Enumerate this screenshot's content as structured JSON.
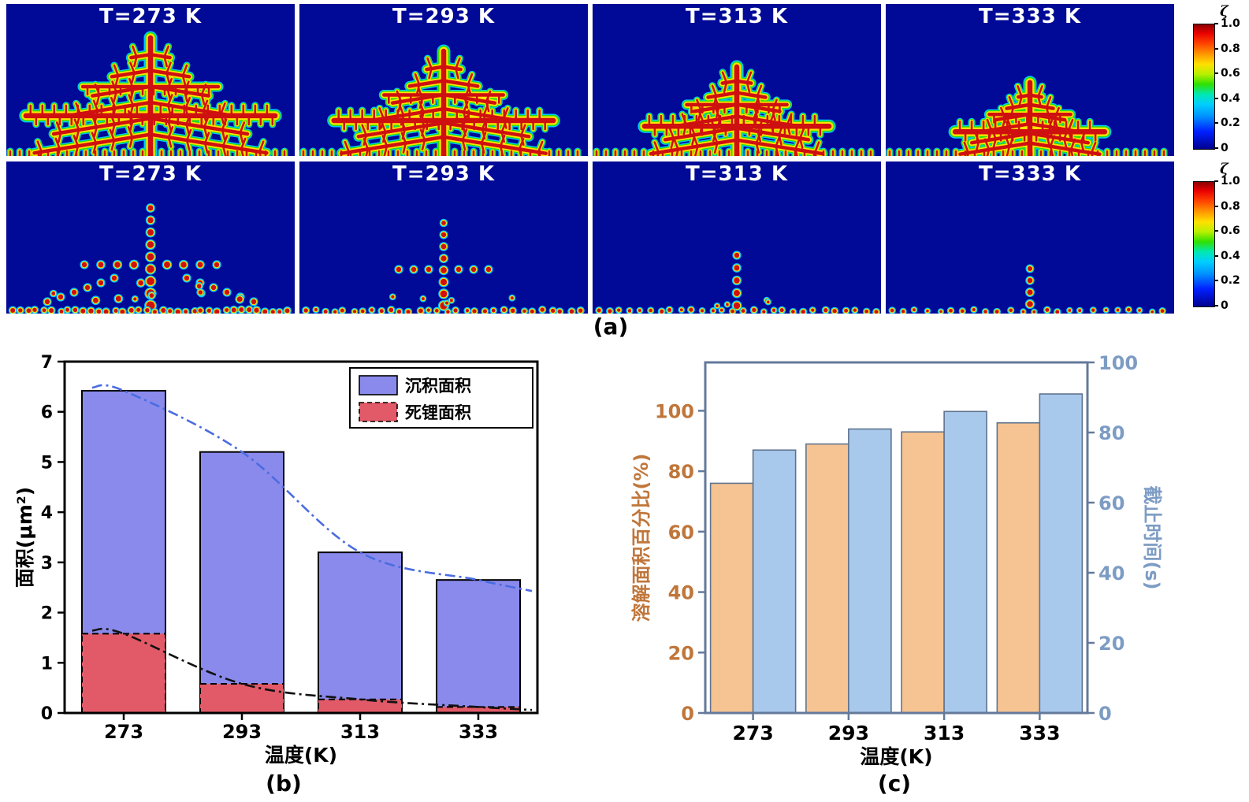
{
  "figure": {
    "panel_labels": {
      "a": "(a)",
      "b": "(b)",
      "c": "(c)"
    },
    "colorbar": {
      "label": "ζ",
      "ticks": [
        "1.0",
        "0.8",
        "0.6",
        "0.4",
        "0.2",
        "0"
      ]
    },
    "row1_titles": [
      "T=273 K",
      "T=293 K",
      "T=313 K",
      "T=333 K"
    ],
    "row2_titles": [
      "T=273 K",
      "T=293 K",
      "T=313 K",
      "T=333 K"
    ]
  },
  "chart_data": [
    {
      "id": "b",
      "type": "bar",
      "categories": [
        "273",
        "293",
        "313",
        "333"
      ],
      "series": [
        {
          "name": "沉积面积",
          "values": [
            6.42,
            5.2,
            3.2,
            2.65
          ],
          "color": "#8a8aec",
          "border": "solid",
          "trend_color": "#4a6ce0"
        },
        {
          "name": "死锂面积",
          "values": [
            1.58,
            0.58,
            0.27,
            0.12
          ],
          "color": "#e25a68",
          "border": "dashed",
          "trend_color": "#111111"
        }
      ],
      "xlabel": "温度(K)",
      "ylabel": "面积(μm²)",
      "ylim": [
        0,
        7
      ],
      "yticks": [
        0,
        1,
        2,
        3,
        4,
        5,
        6,
        7
      ],
      "legend_position": "top-right",
      "grid": false
    },
    {
      "id": "c",
      "type": "grouped-bar",
      "categories": [
        "273",
        "293",
        "313",
        "333"
      ],
      "series": [
        {
          "name": "溶解面积百分比(%)",
          "axis": "left",
          "values": [
            76,
            89,
            93,
            96
          ],
          "color": "#f6c492"
        },
        {
          "name": "截止时间(s)",
          "axis": "right",
          "values": [
            75,
            81,
            86,
            91
          ],
          "color": "#a9c9ec"
        }
      ],
      "xlabel": "温度(K)",
      "ylabel_left": "溶解面积百分比(%)",
      "ylabel_right": "截止时间(s)",
      "ylim_left": [
        0,
        116
      ],
      "ylim_right": [
        0,
        100
      ],
      "yticks_left": [
        0,
        20,
        40,
        60,
        80,
        100
      ],
      "yticks_right": [
        0,
        20,
        40,
        60,
        80,
        100
      ],
      "axis_color": "#64799a",
      "left_tick_color": "#c0763a",
      "right_tick_color": "#7d9cc4",
      "grid": false
    }
  ]
}
